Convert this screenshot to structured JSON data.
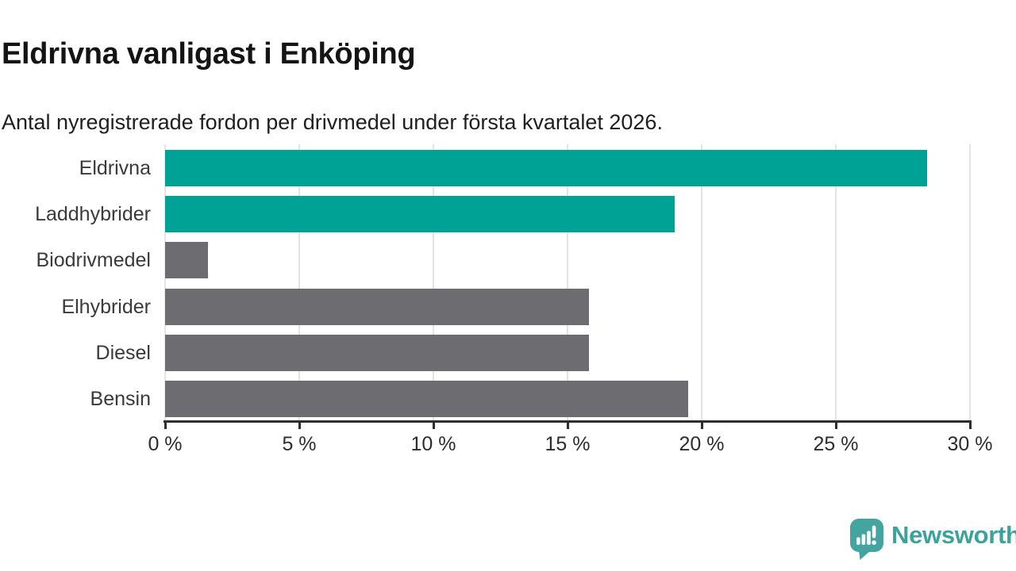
{
  "header": {
    "title": "Eldrivna vanligast i Enköping",
    "subtitle": "Antal nyregistrerade fordon per drivmedel under första kvartalet 2026."
  },
  "chart_data": {
    "type": "bar",
    "orientation": "horizontal",
    "title": "Eldrivna vanligast i Enköping",
    "subtitle": "Antal nyregistrerade fordon per drivmedel under första kvartalet 2026.",
    "categories": [
      "Eldrivna",
      "Laddhybrider",
      "Biodrivmedel",
      "Elhybrider",
      "Diesel",
      "Bensin"
    ],
    "values": [
      28.4,
      19.0,
      1.6,
      15.8,
      15.8,
      19.5
    ],
    "unit": "%",
    "xlim": [
      0,
      30
    ],
    "x_ticks": [
      0,
      5,
      10,
      15,
      20,
      25,
      30
    ],
    "x_tick_labels": [
      "0 %",
      "5 %",
      "10 %",
      "15 %",
      "20 %",
      "25 %",
      "30 %"
    ],
    "bar_colors": [
      "#00a296",
      "#00a296",
      "#6c6c71",
      "#6c6c71",
      "#6c6c71",
      "#6c6c71"
    ],
    "highlight_color": "#00a296",
    "base_color": "#6c6c71",
    "gridline_color": "#e3e3e3",
    "axis_color": "#2e2e2e",
    "grid": true,
    "legend": false
  },
  "footer": {
    "brand_name": "Newsworthy",
    "brand_color": "#3ba29c",
    "logo_icon_color": "#44a5a0",
    "logo_icon": "newsworthy-speech-bubble-bar-chart-icon"
  }
}
